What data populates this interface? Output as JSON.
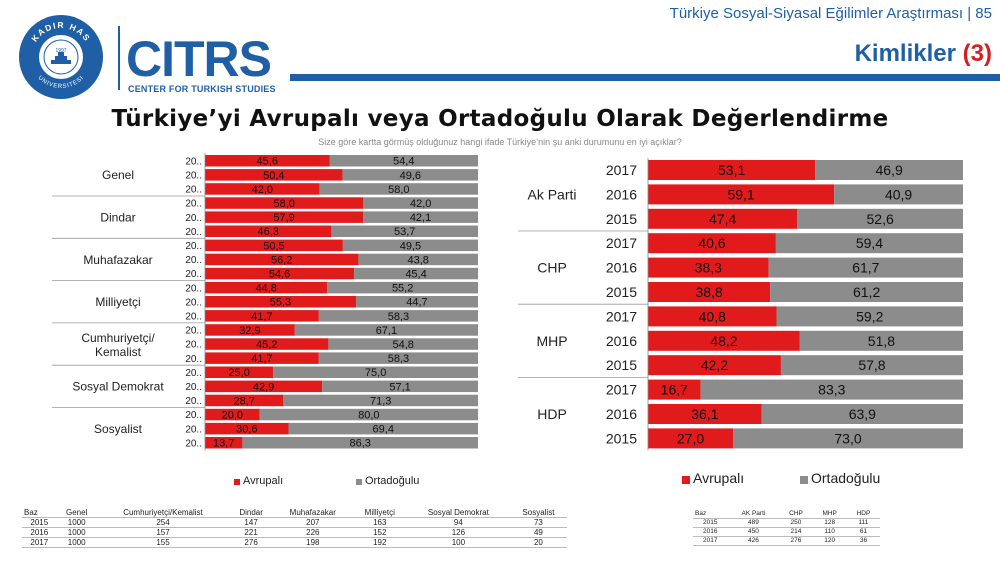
{
  "header": {
    "report_title": "Türkiye Sosyal-Siyasal Eğilimler Araştırması | 85",
    "section_title": "Kimlikler",
    "section_number": "(3)"
  },
  "branding": {
    "seal_top_text": "KADIR HAS",
    "seal_bottom_text": "UNIVERSITESI",
    "seal_year": "1997",
    "logo_text": "CITRS",
    "logo_subtitle": "CENTER FOR TURKISH STUDIES"
  },
  "colors": {
    "brand": "#1f5fa6",
    "accent": "#d42020",
    "avrupali": "#e11b1b",
    "ortadogulu": "#8c8c8c"
  },
  "title": "Türkiye’yi Avrupalı veya Ortadoğulu Olarak Değerlendirme",
  "subtitle": "Size göre kartta görmüş olduğunuz hangi ifade Türkiye’nin şu anki durumunu en iyi açıklar?",
  "chart_data": [
    {
      "type": "bar",
      "orientation": "horizontal",
      "stacked": true,
      "percent_stacked": true,
      "groups": [
        {
          "label": "Genel",
          "rows": [
            {
              "year": "20..",
              "avrupali": 45.6,
              "ortadogulu": 54.4
            },
            {
              "year": "20..",
              "avrupali": 50.4,
              "ortadogulu": 49.6
            },
            {
              "year": "20..",
              "avrupali": 42.0,
              "ortadogulu": 58.0
            }
          ]
        },
        {
          "label": "Dindar",
          "rows": [
            {
              "year": "20..",
              "avrupali": 58.0,
              "ortadogulu": 42.0
            },
            {
              "year": "20..",
              "avrupali": 57.9,
              "ortadogulu": 42.1
            },
            {
              "year": "20..",
              "avrupali": 46.3,
              "ortadogulu": 53.7
            }
          ]
        },
        {
          "label": "Muhafazakar",
          "rows": [
            {
              "year": "20..",
              "avrupali": 50.5,
              "ortadogulu": 49.5
            },
            {
              "year": "20..",
              "avrupali": 56.2,
              "ortadogulu": 43.8
            },
            {
              "year": "20..",
              "avrupali": 54.6,
              "ortadogulu": 45.4
            }
          ]
        },
        {
          "label": "Milliyetçi",
          "rows": [
            {
              "year": "20..",
              "avrupali": 44.8,
              "ortadogulu": 55.2
            },
            {
              "year": "20..",
              "avrupali": 55.3,
              "ortadogulu": 44.7
            },
            {
              "year": "20..",
              "avrupali": 41.7,
              "ortadogulu": 58.3
            }
          ]
        },
        {
          "label": "Cumhuriyetçi/ Kemalist",
          "rows": [
            {
              "year": "20..",
              "avrupali": 32.9,
              "ortadogulu": 67.1
            },
            {
              "year": "20..",
              "avrupali": 45.2,
              "ortadogulu": 54.8
            },
            {
              "year": "20..",
              "avrupali": 41.7,
              "ortadogulu": 58.3
            }
          ]
        },
        {
          "label": "Sosyal Demokrat",
          "rows": [
            {
              "year": "20..",
              "avrupali": 25.0,
              "ortadogulu": 75.0
            },
            {
              "year": "20..",
              "avrupali": 42.9,
              "ortadogulu": 57.1
            },
            {
              "year": "20..",
              "avrupali": 28.7,
              "ortadogulu": 71.3
            }
          ]
        },
        {
          "label": "Sosyalist",
          "rows": [
            {
              "year": "20..",
              "avrupali": 20.0,
              "ortadogulu": 80.0
            },
            {
              "year": "20..",
              "avrupali": 30.6,
              "ortadogulu": 69.4
            },
            {
              "year": "20..",
              "avrupali": 13.7,
              "ortadogulu": 86.3
            }
          ]
        }
      ],
      "series": [
        {
          "name": "Avrupalı"
        },
        {
          "name": "Ortadoğulu"
        }
      ],
      "legend_position": "bottom",
      "grid": false
    },
    {
      "type": "bar",
      "orientation": "horizontal",
      "stacked": true,
      "percent_stacked": true,
      "groups": [
        {
          "label": "Ak Parti",
          "rows": [
            {
              "year": "2017",
              "avrupali": 53.1,
              "ortadogulu": 46.9
            },
            {
              "year": "2016",
              "avrupali": 59.1,
              "ortadogulu": 40.9
            },
            {
              "year": "2015",
              "avrupali": 47.4,
              "ortadogulu": 52.6
            }
          ]
        },
        {
          "label": "CHP",
          "rows": [
            {
              "year": "2017",
              "avrupali": 40.6,
              "ortadogulu": 59.4
            },
            {
              "year": "2016",
              "avrupali": 38.3,
              "ortadogulu": 61.7
            },
            {
              "year": "2015",
              "avrupali": 38.8,
              "ortadogulu": 61.2
            }
          ]
        },
        {
          "label": "MHP",
          "rows": [
            {
              "year": "2017",
              "avrupali": 40.8,
              "ortadogulu": 59.2
            },
            {
              "year": "2016",
              "avrupali": 48.2,
              "ortadogulu": 51.8
            },
            {
              "year": "2015",
              "avrupali": 42.2,
              "ortadogulu": 57.8
            }
          ]
        },
        {
          "label": "HDP",
          "rows": [
            {
              "year": "2017",
              "avrupali": 16.7,
              "ortadogulu": 83.3
            },
            {
              "year": "2016",
              "avrupali": 36.1,
              "ortadogulu": 63.9
            },
            {
              "year": "2015",
              "avrupali": 27.0,
              "ortadogulu": 73.0
            }
          ]
        }
      ],
      "series": [
        {
          "name": "Avrupalı"
        },
        {
          "name": "Ortadoğulu"
        }
      ],
      "legend_position": "bottom",
      "grid": false
    }
  ],
  "base_table_left": {
    "row_label": "Baz",
    "headers": [
      "",
      "Genel",
      "Cumhuriyetçi/Kemalist",
      "Dindar",
      "Muhafazakar",
      "Milliyetçi",
      "Sosyal Demokrat",
      "Sosyalist"
    ],
    "rows": [
      [
        "2015",
        "1000",
        "254",
        "147",
        "207",
        "163",
        "94",
        "73"
      ],
      [
        "2016",
        "1000",
        "157",
        "221",
        "226",
        "152",
        "126",
        "49"
      ],
      [
        "2017",
        "1000",
        "155",
        "276",
        "198",
        "192",
        "100",
        "20"
      ]
    ]
  },
  "base_table_right": {
    "row_label": "Baz",
    "headers": [
      "",
      "AK Parti",
      "CHP",
      "MHP",
      "HDP"
    ],
    "rows": [
      [
        "2015",
        "489",
        "250",
        "128",
        "111"
      ],
      [
        "2016",
        "450",
        "214",
        "110",
        "61"
      ],
      [
        "2017",
        "426",
        "276",
        "120",
        "36"
      ]
    ]
  }
}
